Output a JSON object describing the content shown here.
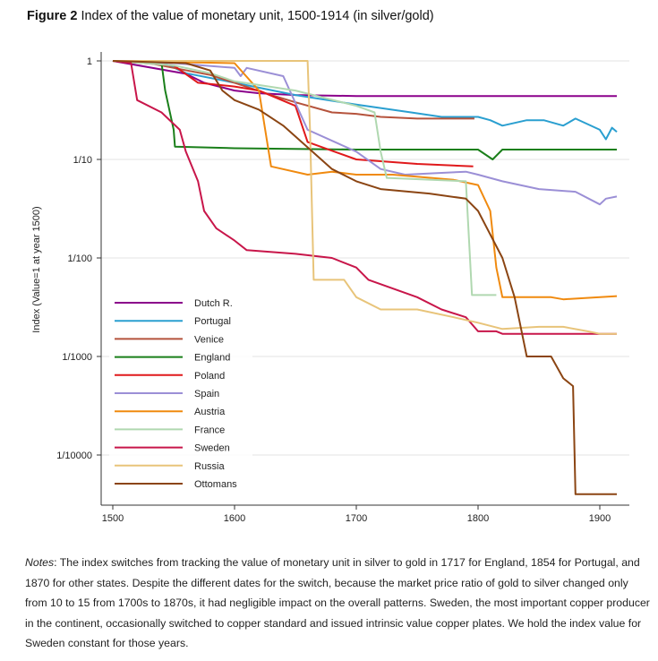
{
  "figure": {
    "label": "Figure 2",
    "title": "Index of the value of monetary unit, 1500-1914 (in silver/gold)"
  },
  "notes": {
    "label": "Notes",
    "text": ": The index switches from tracking the value of monetary unit in silver to gold in 1717 for England, 1854 for Portugal, and 1870 for other states. Despite the different dates for the switch, because the market price ratio of gold to silver changed only from 10 to 15 from 1700s to 1870s, it had negligible impact on the overall patterns. Sweden, the most important copper producer in the continent, occasionally switched to copper standard and issued intrinsic value copper plates. We hold the index value for Sweden constant for those years."
  },
  "chart_data": {
    "type": "line",
    "ylabel": "Index (Value=1 at year 1500)",
    "xlabel": "",
    "xlim": [
      1500,
      1920
    ],
    "ylim": [
      2.5e-05,
      1.3
    ],
    "y_scale": "log",
    "grid": true,
    "legend_position": "lower-left",
    "x_ticks": [
      1500,
      1600,
      1700,
      1800,
      1900
    ],
    "y_ticks": [
      {
        "value": 1,
        "label": "1"
      },
      {
        "value": 0.1,
        "label": "1/10"
      },
      {
        "value": 0.01,
        "label": "1/100"
      },
      {
        "value": 0.001,
        "label": "1/1000"
      },
      {
        "value": 0.0001,
        "label": "1/10000"
      }
    ],
    "series": [
      {
        "name": "Dutch R.",
        "color": "#8b008b",
        "points": [
          [
            1500,
            1
          ],
          [
            1560,
            0.74
          ],
          [
            1575,
            0.6
          ],
          [
            1600,
            0.5
          ],
          [
            1620,
            0.47
          ],
          [
            1650,
            0.45
          ],
          [
            1700,
            0.44
          ],
          [
            1800,
            0.44
          ],
          [
            1914,
            0.44
          ]
        ]
      },
      {
        "name": "Portugal",
        "color": "#2a9fd0",
        "points": [
          [
            1500,
            1
          ],
          [
            1540,
            0.98
          ],
          [
            1560,
            0.75
          ],
          [
            1600,
            0.6
          ],
          [
            1650,
            0.45
          ],
          [
            1700,
            0.36
          ],
          [
            1745,
            0.3
          ],
          [
            1770,
            0.27
          ],
          [
            1800,
            0.27
          ],
          [
            1810,
            0.25
          ],
          [
            1820,
            0.22
          ],
          [
            1840,
            0.25
          ],
          [
            1854,
            0.25
          ],
          [
            1870,
            0.22
          ],
          [
            1880,
            0.26
          ],
          [
            1900,
            0.2
          ],
          [
            1905,
            0.16
          ],
          [
            1910,
            0.21
          ],
          [
            1914,
            0.19
          ]
        ]
      },
      {
        "name": "Venice",
        "color": "#b5533c",
        "points": [
          [
            1500,
            1
          ],
          [
            1530,
            0.95
          ],
          [
            1550,
            0.85
          ],
          [
            1580,
            0.72
          ],
          [
            1600,
            0.6
          ],
          [
            1630,
            0.45
          ],
          [
            1650,
            0.38
          ],
          [
            1680,
            0.3
          ],
          [
            1700,
            0.29
          ],
          [
            1720,
            0.27
          ],
          [
            1750,
            0.26
          ],
          [
            1797,
            0.26
          ]
        ]
      },
      {
        "name": "England",
        "color": "#1a7f1a",
        "points": [
          [
            1500,
            1
          ],
          [
            1540,
            0.96
          ],
          [
            1543,
            0.5
          ],
          [
            1550,
            0.2
          ],
          [
            1551,
            0.135
          ],
          [
            1600,
            0.13
          ],
          [
            1700,
            0.126
          ],
          [
            1800,
            0.126
          ],
          [
            1812,
            0.1
          ],
          [
            1820,
            0.126
          ],
          [
            1914,
            0.126
          ]
        ]
      },
      {
        "name": "Poland",
        "color": "#e0191b",
        "points": [
          [
            1500,
            1
          ],
          [
            1550,
            0.9
          ],
          [
            1570,
            0.6
          ],
          [
            1600,
            0.55
          ],
          [
            1620,
            0.5
          ],
          [
            1650,
            0.35
          ],
          [
            1660,
            0.15
          ],
          [
            1700,
            0.1
          ],
          [
            1750,
            0.09
          ],
          [
            1796,
            0.085
          ]
        ]
      },
      {
        "name": "Spain",
        "color": "#9b8fd6",
        "points": [
          [
            1500,
            1
          ],
          [
            1550,
            0.95
          ],
          [
            1600,
            0.85
          ],
          [
            1605,
            0.7
          ],
          [
            1610,
            0.85
          ],
          [
            1640,
            0.7
          ],
          [
            1660,
            0.2
          ],
          [
            1700,
            0.12
          ],
          [
            1720,
            0.08
          ],
          [
            1740,
            0.07
          ],
          [
            1790,
            0.075
          ],
          [
            1800,
            0.07
          ],
          [
            1820,
            0.06
          ],
          [
            1850,
            0.05
          ],
          [
            1880,
            0.047
          ],
          [
            1900,
            0.035
          ],
          [
            1905,
            0.04
          ],
          [
            1914,
            0.042
          ]
        ]
      },
      {
        "name": "Austria",
        "color": "#f08a0f",
        "points": [
          [
            1500,
            1
          ],
          [
            1600,
            0.95
          ],
          [
            1620,
            0.5
          ],
          [
            1630,
            0.085
          ],
          [
            1660,
            0.07
          ],
          [
            1680,
            0.075
          ],
          [
            1700,
            0.07
          ],
          [
            1730,
            0.07
          ],
          [
            1780,
            0.062
          ],
          [
            1800,
            0.055
          ],
          [
            1810,
            0.03
          ],
          [
            1815,
            0.008
          ],
          [
            1820,
            0.004
          ],
          [
            1860,
            0.004
          ],
          [
            1870,
            0.0038
          ],
          [
            1914,
            0.0041
          ]
        ]
      },
      {
        "name": "France",
        "color": "#b0d8b0",
        "points": [
          [
            1500,
            1
          ],
          [
            1550,
            0.9
          ],
          [
            1580,
            0.75
          ],
          [
            1600,
            0.62
          ],
          [
            1650,
            0.5
          ],
          [
            1700,
            0.35
          ],
          [
            1715,
            0.3
          ],
          [
            1720,
            0.12
          ],
          [
            1725,
            0.065
          ],
          [
            1790,
            0.06
          ],
          [
            1795,
            0.0042
          ],
          [
            1815,
            0.0042
          ]
        ]
      },
      {
        "name": "Sweden",
        "color": "#c8164a",
        "points": [
          [
            1500,
            1
          ],
          [
            1515,
            0.95
          ],
          [
            1520,
            0.4
          ],
          [
            1540,
            0.3
          ],
          [
            1555,
            0.2
          ],
          [
            1560,
            0.12
          ],
          [
            1570,
            0.06
          ],
          [
            1575,
            0.03
          ],
          [
            1585,
            0.02
          ],
          [
            1600,
            0.015
          ],
          [
            1610,
            0.012
          ],
          [
            1650,
            0.011
          ],
          [
            1680,
            0.01
          ],
          [
            1700,
            0.008
          ],
          [
            1710,
            0.006
          ],
          [
            1750,
            0.004
          ],
          [
            1770,
            0.003
          ],
          [
            1790,
            0.0025
          ],
          [
            1800,
            0.0018
          ],
          [
            1815,
            0.0018
          ],
          [
            1820,
            0.0017
          ],
          [
            1914,
            0.0017
          ]
        ]
      },
      {
        "name": "Russia",
        "color": "#e8c47a",
        "points": [
          [
            1500,
            1
          ],
          [
            1660,
            1
          ],
          [
            1662,
            0.2
          ],
          [
            1665,
            0.006
          ],
          [
            1690,
            0.006
          ],
          [
            1700,
            0.004
          ],
          [
            1720,
            0.003
          ],
          [
            1750,
            0.003
          ],
          [
            1780,
            0.0025
          ],
          [
            1800,
            0.0022
          ],
          [
            1820,
            0.0019
          ],
          [
            1850,
            0.002
          ],
          [
            1870,
            0.002
          ],
          [
            1890,
            0.0018
          ],
          [
            1900,
            0.0017
          ],
          [
            1914,
            0.0017
          ]
        ]
      },
      {
        "name": "Ottomans",
        "color": "#8b4513",
        "points": [
          [
            1500,
            1
          ],
          [
            1560,
            0.95
          ],
          [
            1580,
            0.8
          ],
          [
            1590,
            0.5
          ],
          [
            1600,
            0.4
          ],
          [
            1620,
            0.32
          ],
          [
            1640,
            0.22
          ],
          [
            1680,
            0.08
          ],
          [
            1700,
            0.06
          ],
          [
            1720,
            0.05
          ],
          [
            1760,
            0.045
          ],
          [
            1790,
            0.04
          ],
          [
            1800,
            0.03
          ],
          [
            1820,
            0.01
          ],
          [
            1830,
            0.004
          ],
          [
            1840,
            0.001
          ],
          [
            1860,
            0.001
          ],
          [
            1870,
            0.0006
          ],
          [
            1878,
            0.0005
          ],
          [
            1880,
            4e-05
          ],
          [
            1914,
            4e-05
          ]
        ]
      }
    ]
  }
}
